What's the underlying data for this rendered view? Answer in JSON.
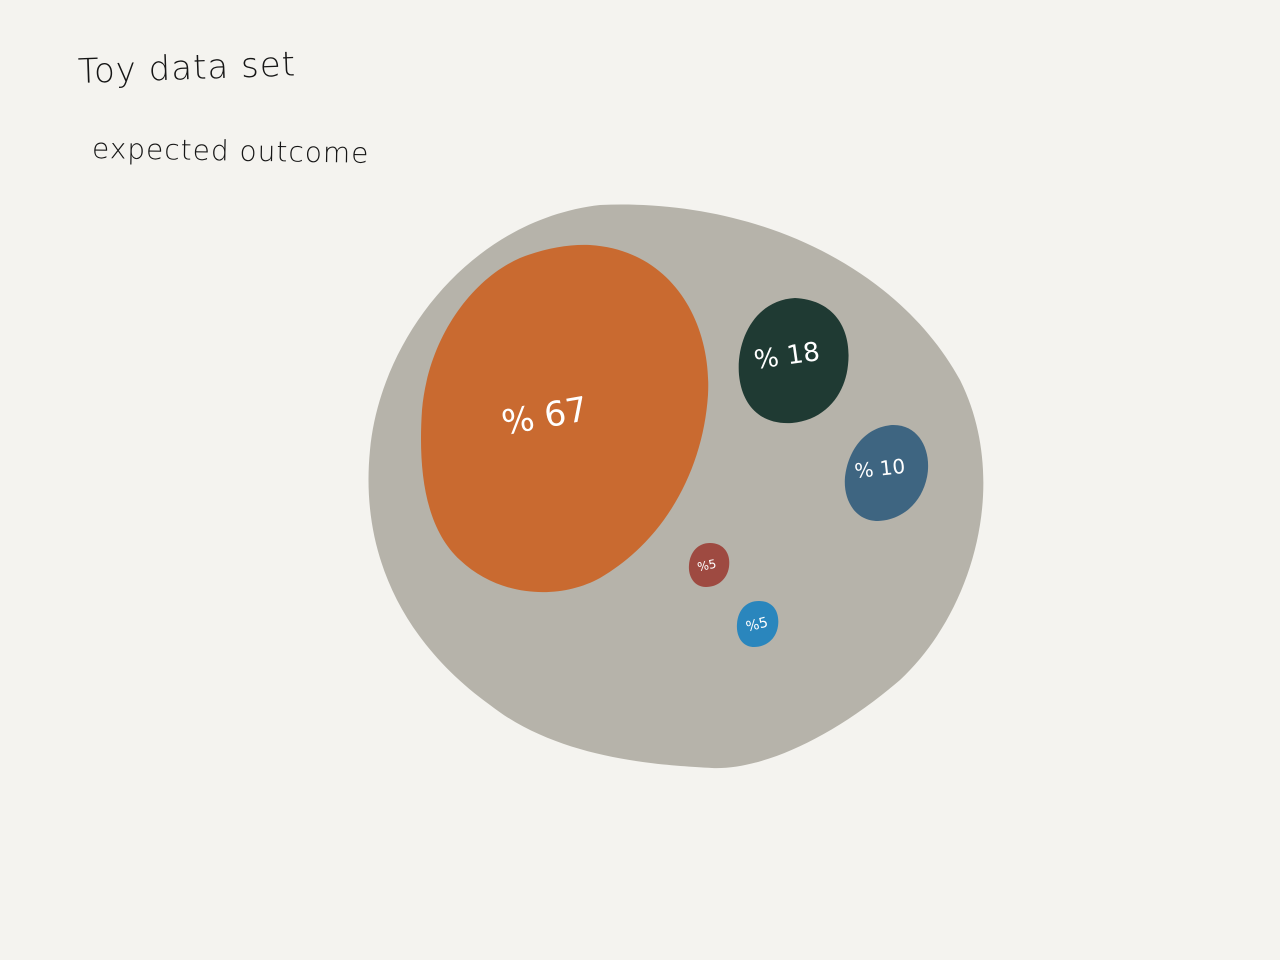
{
  "title": "Toy data set",
  "subtitle": "expected outcome",
  "container": {
    "color": "#b6b3aa"
  },
  "bubbles": [
    {
      "id": "bubble-67",
      "label": "% 67",
      "value": 67,
      "color": "#c96a30"
    },
    {
      "id": "bubble-18",
      "label": "% 18",
      "value": 18,
      "color": "#1f3a33"
    },
    {
      "id": "bubble-10",
      "label": "% 10",
      "value": 10,
      "color": "#3e6581"
    },
    {
      "id": "bubble-5a",
      "label": "%5",
      "value": 5,
      "color": "#9e4a41"
    },
    {
      "id": "bubble-5b",
      "label": "%5",
      "value": 5,
      "color": "#2a86bd"
    }
  ]
}
